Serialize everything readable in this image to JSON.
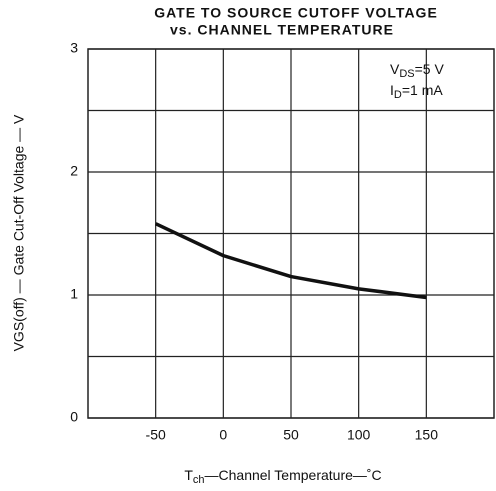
{
  "chart_data": {
    "type": "line",
    "title": [
      "GATE TO SOURCE CUTOFF VOLTAGE",
      "vs. CHANNEL TEMPERATURE"
    ],
    "x_label": {
      "main": "T",
      "sub": "ch",
      "rest": "—Channel Temperature—˚C"
    },
    "y_label": "VGS(off) — Gate Cut-Off Voltage — V",
    "annotations": [
      {
        "main": "V",
        "sub": "DS",
        "rest": "=5 V"
      },
      {
        "main": "I",
        "sub": "D",
        "rest": "=1 mA"
      }
    ],
    "x": [
      -50,
      0,
      50,
      100,
      150
    ],
    "series": [
      {
        "color": "#111111",
        "values": [
          1.58,
          1.32,
          1.15,
          1.05,
          0.98
        ]
      }
    ],
    "xlim": [
      -100,
      200
    ],
    "xticks": [
      -50,
      0,
      50,
      100,
      150
    ],
    "ylim": [
      0,
      3
    ],
    "yticks": [
      0,
      1,
      2,
      3
    ],
    "y_minor_grid": [
      0.5,
      1.5,
      2.5
    ],
    "grid": true
  }
}
